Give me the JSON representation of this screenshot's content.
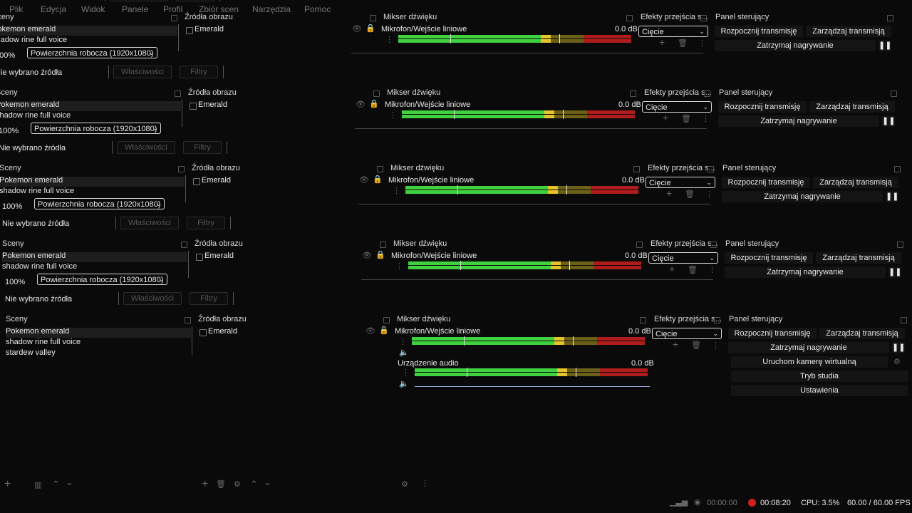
{
  "menu": [
    "Plik",
    "Edycja",
    "Widok",
    "Panele",
    "Profil",
    "Zbiór scen",
    "Narzędzia",
    "Pomoc"
  ],
  "panels": {
    "scenes_title": "Sceny",
    "sources_title": "Źródła obrazu",
    "mixer_title": "Mikser dźwięku",
    "transitions_title": "Efekty przejścia s...",
    "controls_title": "Panel sterujący"
  },
  "scenes": [
    "Pokemon emerald",
    "shadow rine full voice",
    "stardew valley"
  ],
  "sources": [
    "Emerald"
  ],
  "no_source": "Nie wybrano źródła",
  "properties_button": "Właściwości",
  "filters_button": "Filtry",
  "zoom": "100%",
  "canvas_select": "Powierzchnia robocza (1920x1080)",
  "mixer": {
    "channels": [
      {
        "name": "Mikrofon/Wejście liniowe",
        "db": "0.0 dB",
        "level": 0.78
      },
      {
        "name": "Urządzenie audio",
        "db": "0.0 dB",
        "level": 0.85
      }
    ]
  },
  "transition": "Cięcie",
  "controls": {
    "start_stream": "Rozpocznij transmisję",
    "manage_stream": "Zarządzaj transmisją",
    "stop_recording": "Zatrzymaj nagrywanie",
    "virtual_cam": "Uruchom kamerę wirtualną",
    "studio_mode": "Tryb studia",
    "settings": "Ustawienia"
  },
  "status": {
    "stream_time": "00:00:00",
    "rec_time": "00:08:20",
    "cpu": "CPU: 3.5%",
    "fps": "60.00 / 60.00 FPS",
    "rec_color": "#d11f1f"
  },
  "colors": {
    "green": "#3fd13f",
    "yellow": "#e6c42c",
    "red": "#b01c1c",
    "dark_green": "#1f6a1f",
    "dark_yellow": "#6b6018",
    "dark_red": "#4e1010"
  }
}
